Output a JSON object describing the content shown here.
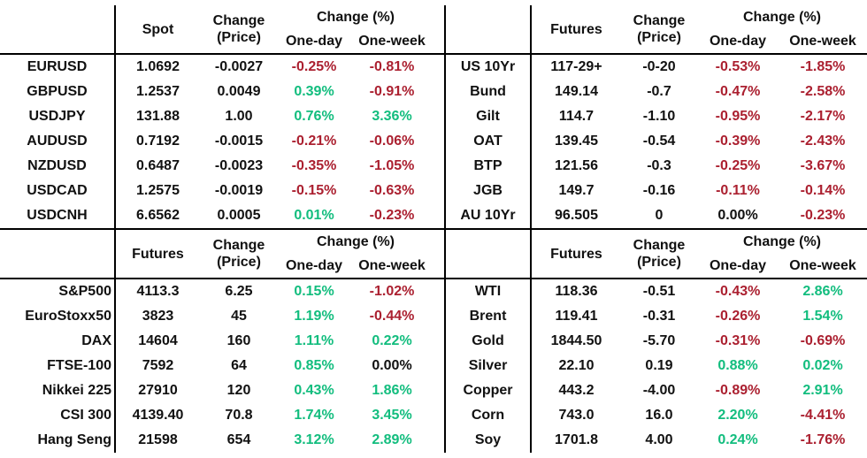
{
  "colors": {
    "positive_pct": "#12bd7e",
    "negative_pct": "#ab2030",
    "text": "#111111",
    "line": "#000000"
  },
  "labels": {
    "change_line1": "Change",
    "change_line2": "(Price)",
    "change_pct": "Change (%)",
    "one_day": "One-day",
    "one_week": "One-week"
  },
  "chart_data": [
    {
      "type": "table",
      "id": "fx",
      "value_header": "Spot",
      "label_align": "center",
      "columns": [
        "",
        "Spot",
        "Change (Price)",
        "One-day",
        "One-week"
      ],
      "rows": [
        {
          "label": "EURUSD",
          "value": "1.0692",
          "change": "-0.0027",
          "one_day": "-0.25%",
          "one_week": "-0.81%"
        },
        {
          "label": "GBPUSD",
          "value": "1.2537",
          "change": "0.0049",
          "one_day": "0.39%",
          "one_week": "-0.91%"
        },
        {
          "label": "USDJPY",
          "value": "131.88",
          "change": "1.00",
          "one_day": "0.76%",
          "one_week": "3.36%"
        },
        {
          "label": "AUDUSD",
          "value": "0.7192",
          "change": "-0.0015",
          "one_day": "-0.21%",
          "one_week": "-0.06%"
        },
        {
          "label": "NZDUSD",
          "value": "0.6487",
          "change": "-0.0023",
          "one_day": "-0.35%",
          "one_week": "-1.05%"
        },
        {
          "label": "USDCAD",
          "value": "1.2575",
          "change": "-0.0019",
          "one_day": "-0.15%",
          "one_week": "-0.63%"
        },
        {
          "label": "USDCNH",
          "value": "6.6562",
          "change": "0.0005",
          "one_day": "0.01%",
          "one_week": "-0.23%"
        }
      ]
    },
    {
      "type": "table",
      "id": "bonds",
      "value_header": "Futures",
      "label_align": "center",
      "columns": [
        "",
        "Futures",
        "Change (Price)",
        "One-day",
        "One-week"
      ],
      "rows": [
        {
          "label": "US 10Yr",
          "value": "117-29+",
          "change": "-0-20",
          "one_day": "-0.53%",
          "one_week": "-1.85%"
        },
        {
          "label": "Bund",
          "value": "149.14",
          "change": "-0.7",
          "one_day": "-0.47%",
          "one_week": "-2.58%"
        },
        {
          "label": "Gilt",
          "value": "114.7",
          "change": "-1.10",
          "one_day": "-0.95%",
          "one_week": "-2.17%"
        },
        {
          "label": "OAT",
          "value": "139.45",
          "change": "-0.54",
          "one_day": "-0.39%",
          "one_week": "-2.43%"
        },
        {
          "label": "BTP",
          "value": "121.56",
          "change": "-0.3",
          "one_day": "-0.25%",
          "one_week": "-3.67%"
        },
        {
          "label": "JGB",
          "value": "149.7",
          "change": "-0.16",
          "one_day": "-0.11%",
          "one_week": "-0.14%"
        },
        {
          "label": "AU 10Yr",
          "value": "96.505",
          "change": "0",
          "one_day": "0.00%",
          "one_week": "-0.23%"
        }
      ]
    },
    {
      "type": "table",
      "id": "equities",
      "value_header": "Futures",
      "label_align": "right",
      "columns": [
        "",
        "Futures",
        "Change (Price)",
        "One-day",
        "One-week"
      ],
      "rows": [
        {
          "label": "S&P500",
          "value": "4113.3",
          "change": "6.25",
          "one_day": "0.15%",
          "one_week": "-1.02%"
        },
        {
          "label": "EuroStoxx50",
          "value": "3823",
          "change": "45",
          "one_day": "1.19%",
          "one_week": "-0.44%"
        },
        {
          "label": "DAX",
          "value": "14604",
          "change": "160",
          "one_day": "1.11%",
          "one_week": "0.22%"
        },
        {
          "label": "FTSE-100",
          "value": "7592",
          "change": "64",
          "one_day": "0.85%",
          "one_week": "0.00%"
        },
        {
          "label": "Nikkei 225",
          "value": "27910",
          "change": "120",
          "one_day": "0.43%",
          "one_week": "1.86%"
        },
        {
          "label": "CSI 300",
          "value": "4139.40",
          "change": "70.8",
          "one_day": "1.74%",
          "one_week": "3.45%"
        },
        {
          "label": "Hang Seng",
          "value": "21598",
          "change": "654",
          "one_day": "3.12%",
          "one_week": "2.89%"
        }
      ]
    },
    {
      "type": "table",
      "id": "commodities",
      "value_header": "Futures",
      "label_align": "center",
      "columns": [
        "",
        "Futures",
        "Change (Price)",
        "One-day",
        "One-week"
      ],
      "rows": [
        {
          "label": "WTI",
          "value": "118.36",
          "change": "-0.51",
          "one_day": "-0.43%",
          "one_week": "2.86%"
        },
        {
          "label": "Brent",
          "value": "119.41",
          "change": "-0.31",
          "one_day": "-0.26%",
          "one_week": "1.54%"
        },
        {
          "label": "Gold",
          "value": "1844.50",
          "change": "-5.70",
          "one_day": "-0.31%",
          "one_week": "-0.69%"
        },
        {
          "label": "Silver",
          "value": "22.10",
          "change": "0.19",
          "one_day": "0.88%",
          "one_week": "0.02%"
        },
        {
          "label": "Copper",
          "value": "443.2",
          "change": "-4.00",
          "one_day": "-0.89%",
          "one_week": "2.91%"
        },
        {
          "label": "Corn",
          "value": "743.0",
          "change": "16.0",
          "one_day": "2.20%",
          "one_week": "-4.41%"
        },
        {
          "label": "Soy",
          "value": "1701.8",
          "change": "4.00",
          "one_day": "0.24%",
          "one_week": "-1.76%"
        }
      ]
    }
  ]
}
